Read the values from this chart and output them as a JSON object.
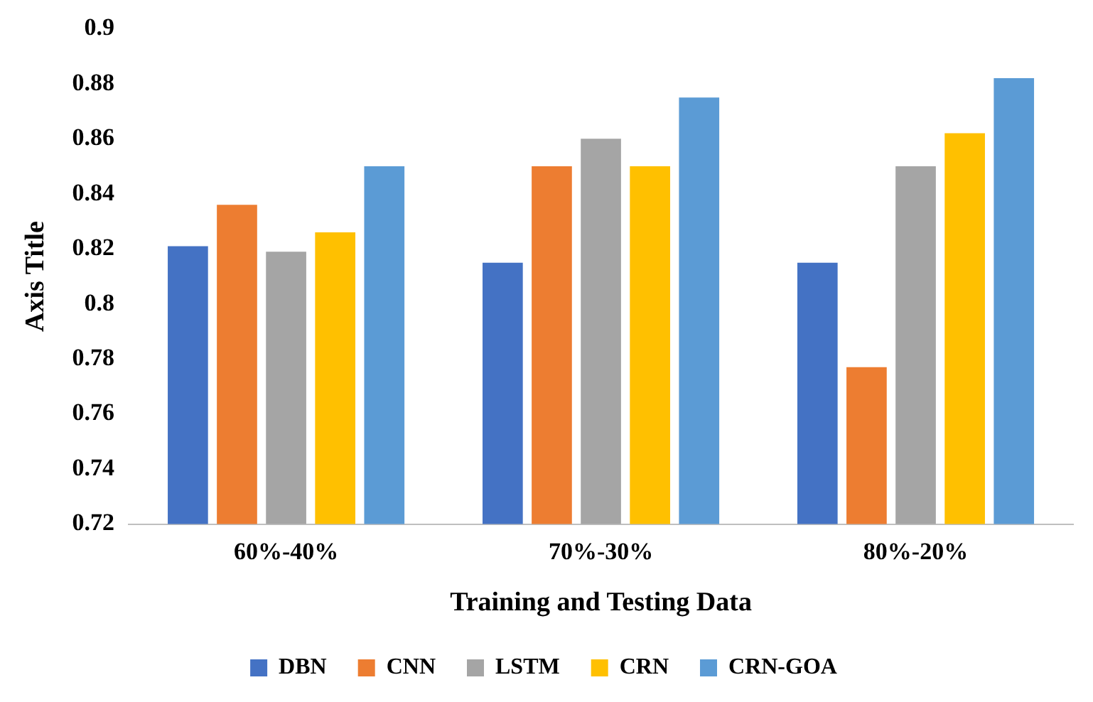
{
  "chart_data": {
    "type": "bar",
    "xlabel": "Training and Testing Data",
    "ylabel": "Axis Title",
    "categories": [
      "60%-40%",
      "70%-30%",
      "80%-20%"
    ],
    "series": [
      {
        "name": "DBN",
        "color": "#4472c4",
        "values": [
          0.821,
          0.815,
          0.815
        ]
      },
      {
        "name": "CNN",
        "color": "#ed7d31",
        "values": [
          0.836,
          0.85,
          0.777
        ]
      },
      {
        "name": "LSTM",
        "color": "#a5a5a5",
        "values": [
          0.819,
          0.86,
          0.85
        ]
      },
      {
        "name": "CRN",
        "color": "#ffc000",
        "values": [
          0.826,
          0.85,
          0.862
        ]
      },
      {
        "name": "CRN-GOA",
        "color": "#5b9bd5",
        "values": [
          0.85,
          0.875,
          0.882
        ]
      }
    ],
    "ylim": [
      0.72,
      0.9
    ],
    "yticks": [
      0.72,
      0.74,
      0.76,
      0.78,
      0.8,
      0.82,
      0.84,
      0.86,
      0.88,
      0.9
    ],
    "grid": false,
    "legend": "bottom"
  }
}
